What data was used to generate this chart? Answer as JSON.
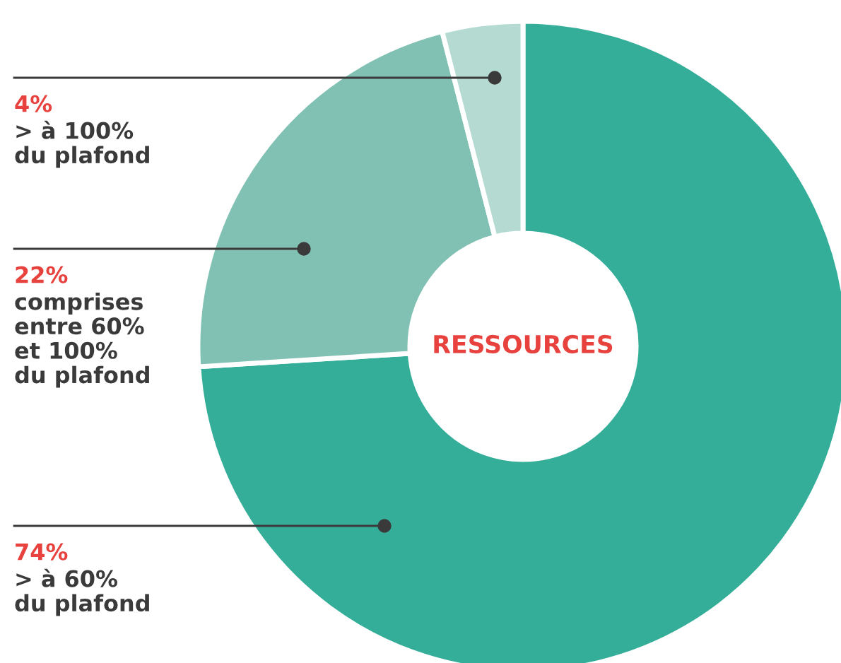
{
  "chart_data": {
    "type": "donut",
    "title": "RESSOURCES",
    "categories": [
      "> à 60%\ndu plafond",
      "comprises\nentre 60%\net 100%\ndu plafond",
      "> à 100%\ndu plafond"
    ],
    "values": [
      74,
      22,
      4
    ],
    "value_labels": [
      "74%",
      "22%",
      "4%"
    ],
    "colors": [
      "#34ae99",
      "#80c1b3",
      "#b5dad2"
    ],
    "legend": false
  }
}
